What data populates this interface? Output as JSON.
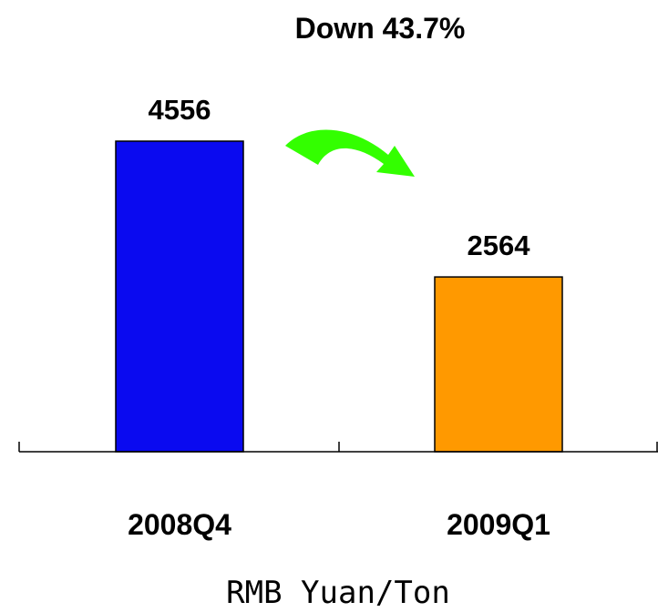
{
  "chart_data": {
    "type": "bar",
    "title": "Down 43.7%",
    "categories": [
      "2008Q4",
      "2009Q1"
    ],
    "values": [
      4556,
      2564
    ],
    "data_labels": [
      "4556",
      "2564"
    ],
    "bar_colors": [
      "#0A0AF0",
      "#FF9900"
    ],
    "xlabel": "RMB Yuan/Ton",
    "ylabel": "",
    "ylim": [
      0,
      4556
    ],
    "grid": false,
    "legend": "none",
    "annotation": {
      "type": "arrow",
      "from": "2008Q4",
      "to": "2009Q1",
      "color": "#33FF00",
      "label": "Down 43.7%"
    }
  }
}
